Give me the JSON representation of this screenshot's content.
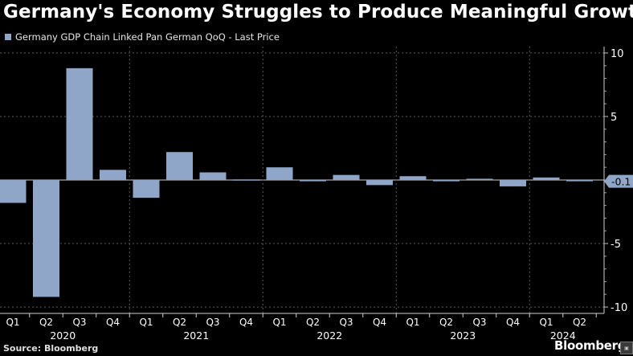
{
  "title": "Germany's Economy Struggles to Produce Meaningful Growth",
  "source": "Source: Bloomberg",
  "brand": "Bloomberg",
  "legend": {
    "label": "Germany GDP Chain Linked Pan German QoQ - Last Price",
    "color": "#8fa6c9"
  },
  "colors": {
    "bar": "#8fa6c9",
    "background": "#000000",
    "grid": "#5a5a5a",
    "last_price_badge": "#8fa6c9"
  },
  "chart_data": {
    "type": "bar",
    "categories": [
      "Q1",
      "Q2",
      "Q3",
      "Q4",
      "Q1",
      "Q2",
      "Q3",
      "Q4",
      "Q1",
      "Q2",
      "Q3",
      "Q4",
      "Q1",
      "Q2",
      "Q3",
      "Q4",
      "Q1",
      "Q2"
    ],
    "years": [
      {
        "label": "2020",
        "start": 0,
        "end": 3
      },
      {
        "label": "2021",
        "start": 4,
        "end": 7
      },
      {
        "label": "2022",
        "start": 8,
        "end": 11
      },
      {
        "label": "2023",
        "start": 12,
        "end": 15
      },
      {
        "label": "2024",
        "start": 16,
        "end": 17
      }
    ],
    "series": [
      {
        "name": "Germany GDP Chain Linked Pan German QoQ - Last Price",
        "values": [
          -1.8,
          -9.2,
          8.8,
          0.8,
          -1.4,
          2.2,
          0.6,
          0.0,
          1.0,
          -0.1,
          0.4,
          -0.4,
          0.3,
          -0.1,
          0.1,
          -0.5,
          0.2,
          -0.1
        ]
      }
    ],
    "ylim": [
      -10.5,
      10.5
    ],
    "yticks": [
      10,
      5,
      0,
      -5,
      -10
    ],
    "ytick_labels": [
      "10",
      "5",
      "",
      "-5",
      "-10"
    ],
    "last_value_label": "-0.1",
    "grid": true,
    "axis_side": "right"
  }
}
